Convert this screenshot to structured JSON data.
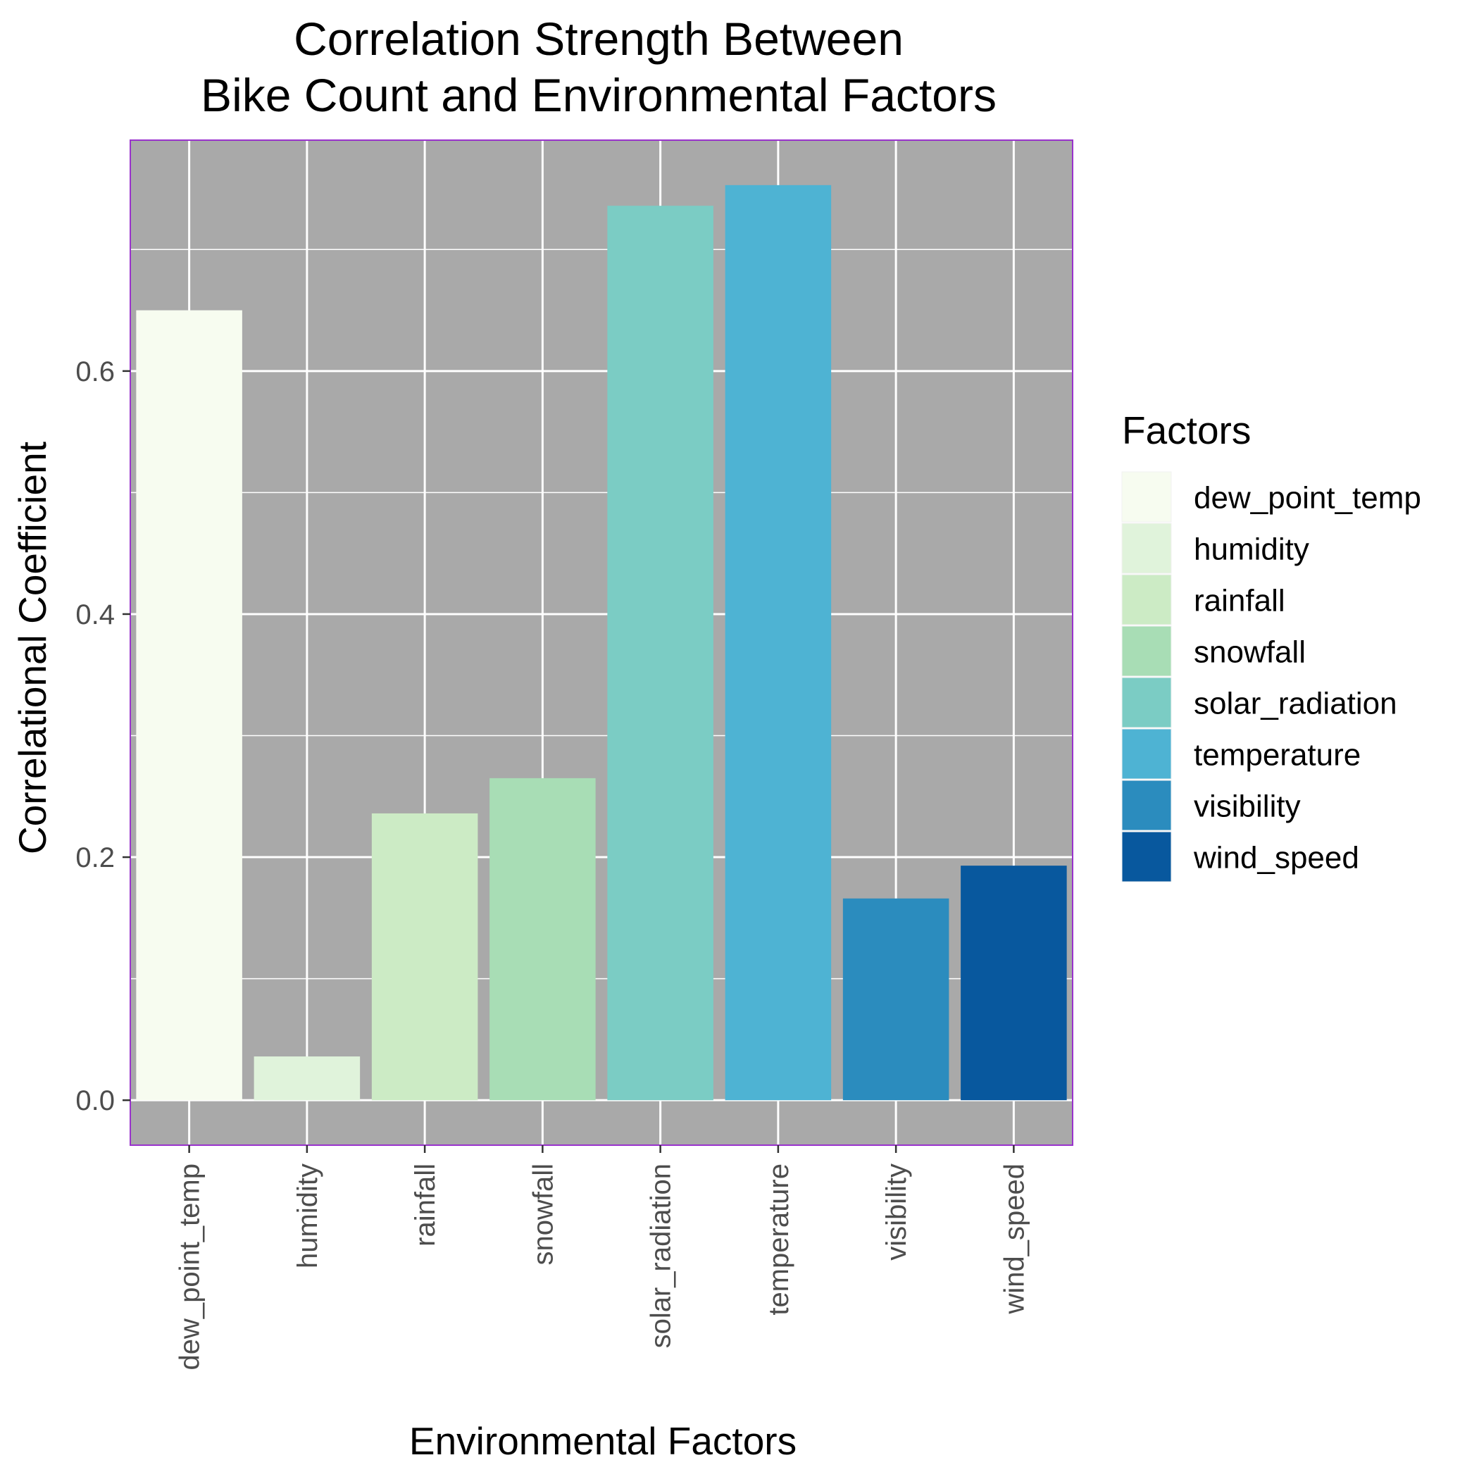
{
  "chart_data": {
    "type": "bar",
    "title": [
      "Correlation Strength Between",
      "Bike Count and Environmental Factors"
    ],
    "xlabel": "Environmental Factors",
    "ylabel": "Correlational Coefficient",
    "categories": [
      "dew_point_temp",
      "humidity",
      "rainfall",
      "snowfall",
      "solar_radiation",
      "temperature",
      "visibility",
      "wind_speed"
    ],
    "values": [
      0.65,
      0.036,
      0.236,
      0.265,
      0.736,
      0.753,
      0.166,
      0.193
    ],
    "colors": [
      "#f7fcf0",
      "#e0f3db",
      "#ccebc5",
      "#a8ddb5",
      "#7bccc4",
      "#4eb3d3",
      "#2b8cbe",
      "#08589e"
    ],
    "ylim": [
      -0.037,
      0.79
    ],
    "yticks": [
      0.0,
      0.2,
      0.4,
      0.6
    ],
    "ytick_labels": [
      "0.0",
      "0.2",
      "0.4",
      "0.6"
    ],
    "grid": true,
    "panel_background": "#a9a9a9",
    "panel_border": "#9932cc",
    "legend": {
      "title": "Factors",
      "placement": "right"
    }
  }
}
